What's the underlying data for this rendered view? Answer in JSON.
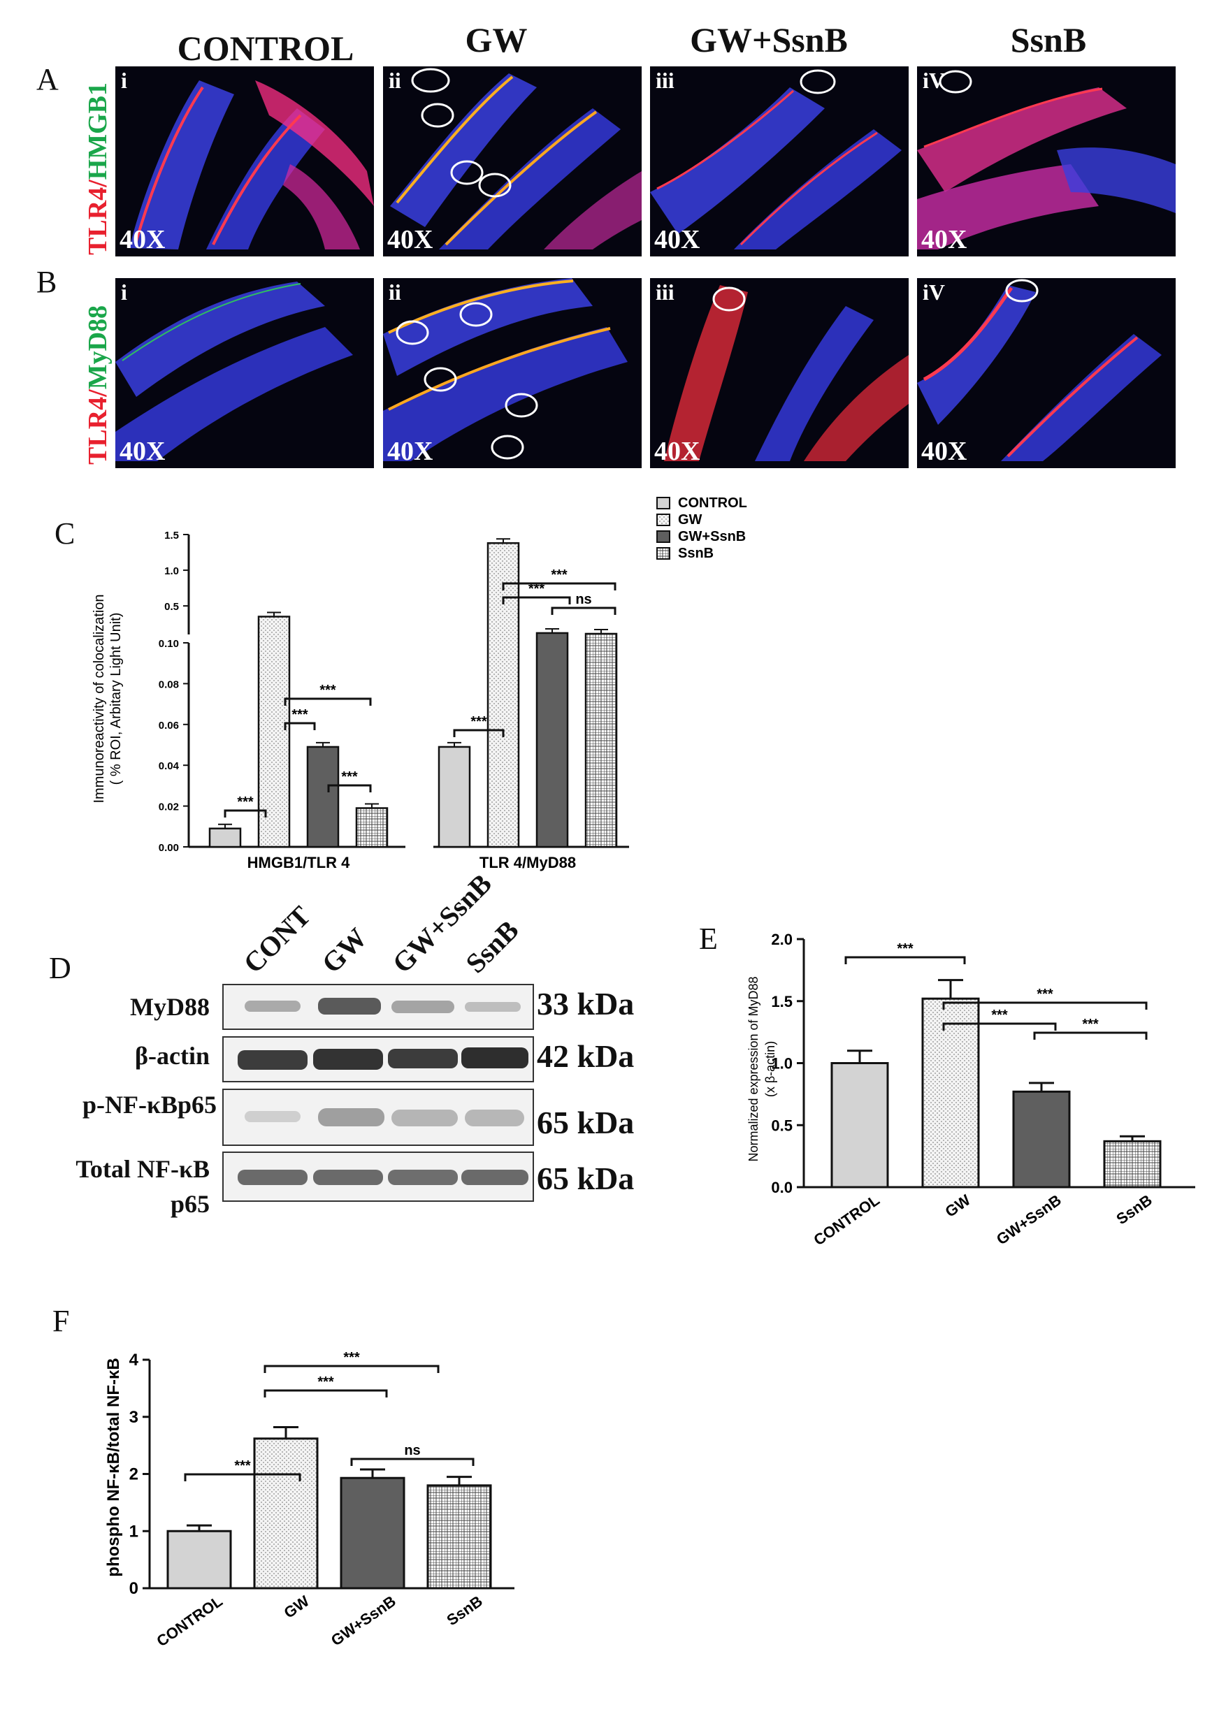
{
  "panel_letters": {
    "a": "A",
    "b": "B",
    "c": "C",
    "d": "D",
    "e": "E",
    "f": "F"
  },
  "microscopy": {
    "columns": [
      "CONTROL",
      "GW",
      "GW+SsnB",
      "SsnB"
    ],
    "row_a_label_red": "TLR4",
    "row_a_label_sep": "/",
    "row_a_label_green": "HMGB1",
    "row_b_label_red": "TLR4",
    "row_b_label_sep": "/",
    "row_b_label_green": "MyD88",
    "roman_a": [
      "i",
      "ii",
      "iii",
      "iV"
    ],
    "roman_b": [
      "i",
      "ii",
      "iii",
      "iV"
    ],
    "magnification": "40X"
  },
  "western_blot": {
    "lanes": [
      "CONT",
      "GW",
      "GW+SsnB",
      "SsnB"
    ],
    "rows": [
      {
        "label": "MyD88",
        "size": "33 kDa"
      },
      {
        "label": "β-actin",
        "size": "42 kDa"
      },
      {
        "label": "p-NF-κBp65",
        "size": "65 kDa"
      },
      {
        "label": "Total NF-κB p65",
        "size": "65 kDa"
      }
    ]
  },
  "chart_data": [
    {
      "id": "C",
      "type": "bar",
      "ylabel": "Immunoreactivity of colocalization ( % ROI, Arbitary Light Unit)",
      "groups": [
        "HMGB1/TLR 4",
        "TLR 4/MyD88"
      ],
      "legend": [
        "CONTROL",
        "GW",
        "GW+SsnB",
        "SsnB"
      ],
      "legend_position": "top-right",
      "broken_axis": true,
      "y_lower_ticks": [
        "0.00",
        "0.02",
        "0.04",
        "0.06",
        "0.08",
        "0.10"
      ],
      "y_upper_ticks": [
        "0.5",
        "1.0",
        "1.5"
      ],
      "series": [
        {
          "name": "CONTROL",
          "values": [
            0.009,
            0.049
          ]
        },
        {
          "name": "GW",
          "values": [
            0.35,
            1.38
          ]
        },
        {
          "name": "GW+SsnB",
          "values": [
            0.049,
            0.12
          ]
        },
        {
          "name": "SsnB",
          "values": [
            0.019,
            0.11
          ]
        }
      ],
      "significance": [
        "***",
        "***",
        "***",
        "***",
        "***",
        "***",
        "***",
        "ns"
      ]
    },
    {
      "id": "E",
      "type": "bar",
      "ylabel": "Normalized expression of MyD88 (x β-actin)",
      "categories": [
        "CONTROL",
        "GW",
        "GW+SsnB",
        "SsnB"
      ],
      "values": [
        1.0,
        1.52,
        0.77,
        0.37
      ],
      "errors": [
        0.1,
        0.15,
        0.07,
        0.04
      ],
      "ylim": [
        0,
        2.0
      ],
      "y_ticks": [
        "0.0",
        "0.5",
        "1.0",
        "1.5",
        "2.0"
      ],
      "significance": [
        "***",
        "***",
        "***",
        "***"
      ]
    },
    {
      "id": "F",
      "type": "bar",
      "ylabel": "phospho NF-κB/total NF-κB",
      "categories": [
        "CONTROL",
        "GW",
        "GW+SsnB",
        "SsnB"
      ],
      "values": [
        1.0,
        2.62,
        1.93,
        1.8
      ],
      "errors": [
        0.1,
        0.2,
        0.15,
        0.15
      ],
      "ylim": [
        0,
        4
      ],
      "y_ticks": [
        "0",
        "1",
        "2",
        "3",
        "4"
      ],
      "significance": [
        "***",
        "***",
        "***",
        "ns"
      ]
    }
  ],
  "colors": {
    "control": "#d3d3d3",
    "gw": "#ececec",
    "gw_ssnb": "#5f5f5f",
    "ssnb": "#ffffff",
    "red_stain": "#ff2a3a",
    "green_stain": "#1fb84a",
    "nuclei": "#2d33d6"
  }
}
